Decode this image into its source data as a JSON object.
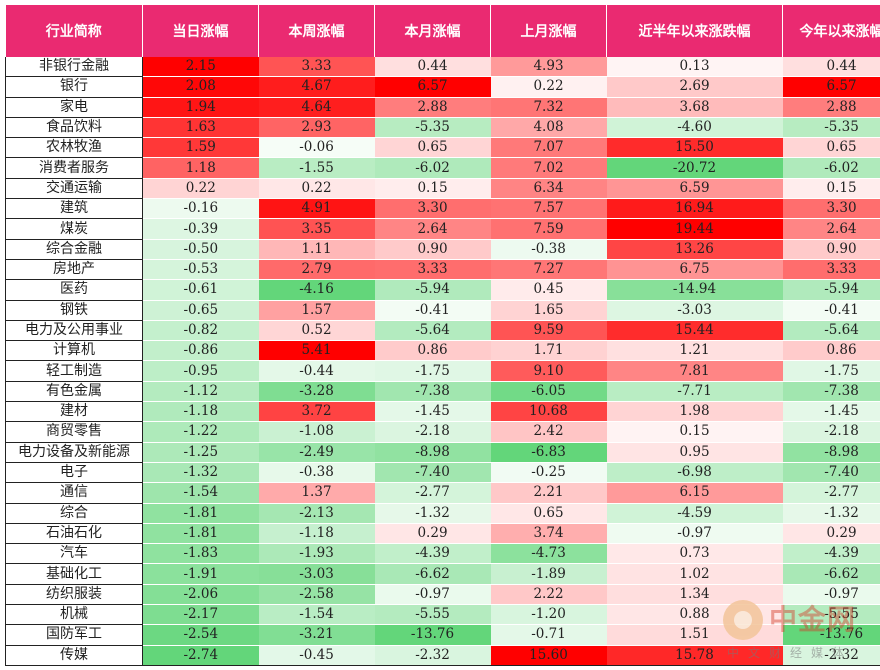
{
  "chart_data": {
    "type": "table",
    "columns": [
      "行业简称",
      "当日涨幅",
      "本周涨幅",
      "本月涨幅",
      "上月涨幅",
      "近半年以来涨跌幅",
      "今年以来涨幅"
    ],
    "rows": [
      {
        "name": "非银行金融",
        "values": [
          2.15,
          3.33,
          0.44,
          4.93,
          0.13,
          0.44
        ]
      },
      {
        "name": "银行",
        "values": [
          2.08,
          4.67,
          6.57,
          0.22,
          2.69,
          6.57
        ]
      },
      {
        "name": "家电",
        "values": [
          1.94,
          4.64,
          2.88,
          7.32,
          3.68,
          2.88
        ]
      },
      {
        "name": "食品饮料",
        "values": [
          1.63,
          2.93,
          -5.35,
          4.08,
          -4.6,
          -5.35
        ]
      },
      {
        "name": "农林牧渔",
        "values": [
          1.59,
          -0.06,
          0.65,
          7.07,
          15.5,
          0.65
        ]
      },
      {
        "name": "消费者服务",
        "values": [
          1.18,
          -1.55,
          -6.02,
          7.02,
          -20.72,
          -6.02
        ]
      },
      {
        "name": "交通运输",
        "values": [
          0.22,
          0.22,
          0.15,
          6.34,
          6.59,
          0.15
        ]
      },
      {
        "name": "建筑",
        "values": [
          -0.16,
          4.91,
          3.3,
          7.57,
          16.94,
          3.3
        ]
      },
      {
        "name": "煤炭",
        "values": [
          -0.39,
          3.35,
          2.64,
          7.59,
          19.44,
          2.64
        ]
      },
      {
        "name": "综合金融",
        "values": [
          -0.5,
          1.11,
          0.9,
          -0.38,
          13.26,
          0.9
        ]
      },
      {
        "name": "房地产",
        "values": [
          -0.53,
          2.79,
          3.33,
          7.27,
          6.75,
          3.33
        ]
      },
      {
        "name": "医药",
        "values": [
          -0.61,
          -4.16,
          -5.94,
          0.45,
          -14.94,
          -5.94
        ]
      },
      {
        "name": "钢铁",
        "values": [
          -0.65,
          1.57,
          -0.41,
          1.65,
          -3.03,
          -0.41
        ]
      },
      {
        "name": "电力及公用事业",
        "values": [
          -0.82,
          0.52,
          -5.64,
          9.59,
          15.44,
          -5.64
        ]
      },
      {
        "name": "计算机",
        "values": [
          -0.86,
          5.41,
          0.86,
          1.71,
          1.21,
          0.86
        ]
      },
      {
        "name": "轻工制造",
        "values": [
          -0.95,
          -0.44,
          -1.75,
          9.1,
          7.81,
          -1.75
        ]
      },
      {
        "name": "有色金属",
        "values": [
          -1.12,
          -3.28,
          -7.38,
          -6.05,
          -7.71,
          -7.38
        ]
      },
      {
        "name": "建材",
        "values": [
          -1.18,
          3.72,
          -1.45,
          10.68,
          1.98,
          -1.45
        ]
      },
      {
        "name": "商贸零售",
        "values": [
          -1.22,
          -1.08,
          -2.18,
          2.42,
          0.15,
          -2.18
        ]
      },
      {
        "name": "电力设备及新能源",
        "values": [
          -1.25,
          -2.49,
          -8.98,
          -6.83,
          0.95,
          -8.98
        ]
      },
      {
        "name": "电子",
        "values": [
          -1.32,
          -0.38,
          -7.4,
          -0.25,
          -6.98,
          -7.4
        ]
      },
      {
        "name": "通信",
        "values": [
          -1.54,
          1.37,
          -2.77,
          2.21,
          6.15,
          -2.77
        ]
      },
      {
        "name": "综合",
        "values": [
          -1.81,
          -2.13,
          -1.32,
          0.65,
          -4.59,
          -1.32
        ]
      },
      {
        "name": "石油石化",
        "values": [
          -1.81,
          -1.18,
          0.29,
          3.74,
          -0.97,
          0.29
        ]
      },
      {
        "name": "汽车",
        "values": [
          -1.83,
          -1.93,
          -4.39,
          -4.73,
          0.73,
          -4.39
        ]
      },
      {
        "name": "基础化工",
        "values": [
          -1.91,
          -3.03,
          -6.62,
          -1.89,
          1.02,
          -6.62
        ]
      },
      {
        "name": "纺织服装",
        "values": [
          -2.06,
          -2.58,
          -0.97,
          2.22,
          1.34,
          -0.97
        ]
      },
      {
        "name": "机械",
        "values": [
          -2.17,
          -1.54,
          -5.55,
          -1.2,
          0.88,
          -5.55
        ]
      },
      {
        "name": "国防军工",
        "values": [
          -2.54,
          -3.21,
          -13.76,
          -0.71,
          1.51,
          -13.76
        ]
      },
      {
        "name": "传媒",
        "values": [
          -2.74,
          -0.45,
          -2.32,
          15.6,
          15.78,
          -2.32
        ]
      }
    ],
    "colors": {
      "header_bg": "#ea2a71",
      "positive": "#ff0000",
      "negative": "#63d67a",
      "neutral": "#ffffff"
    }
  },
  "watermark": {
    "name": "中金网",
    "subtitle": "中文财经媒体"
  }
}
